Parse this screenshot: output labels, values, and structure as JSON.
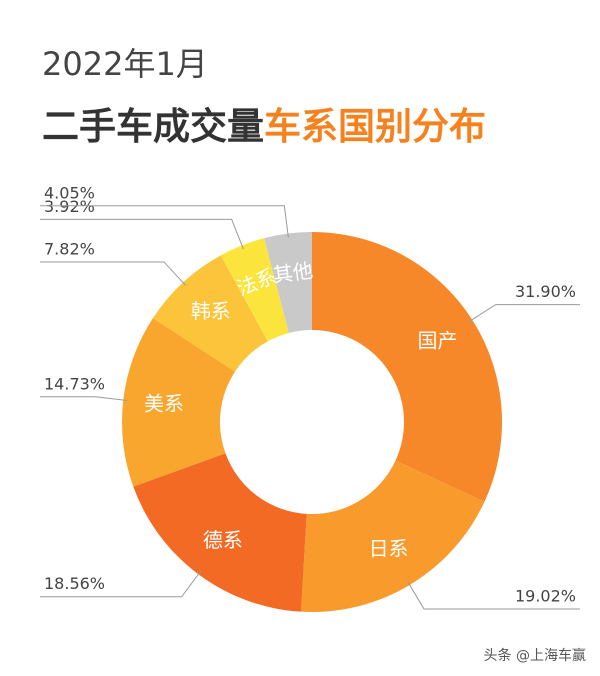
{
  "chart_data": {
    "type": "donut",
    "subtitle": "2022年1月",
    "title": "二手车成交量",
    "title_highlight": "车系国别分布",
    "categories": [
      "国产",
      "日系",
      "德系",
      "美系",
      "韩系",
      "法系",
      "其他"
    ],
    "values": [
      31.9,
      19.02,
      18.56,
      14.73,
      7.82,
      3.92,
      4.05
    ],
    "value_labels": [
      "31.90%",
      "19.02%",
      "18.56%",
      "14.73%",
      "7.82%",
      "3.92%",
      "4.05%"
    ],
    "colors": [
      "#f7882a",
      "#f99a2c",
      "#f26a23",
      "#f9a62f",
      "#fbc43a",
      "#fbe53c",
      "#c9c9c9"
    ],
    "source": "头条 @上海车赢"
  }
}
